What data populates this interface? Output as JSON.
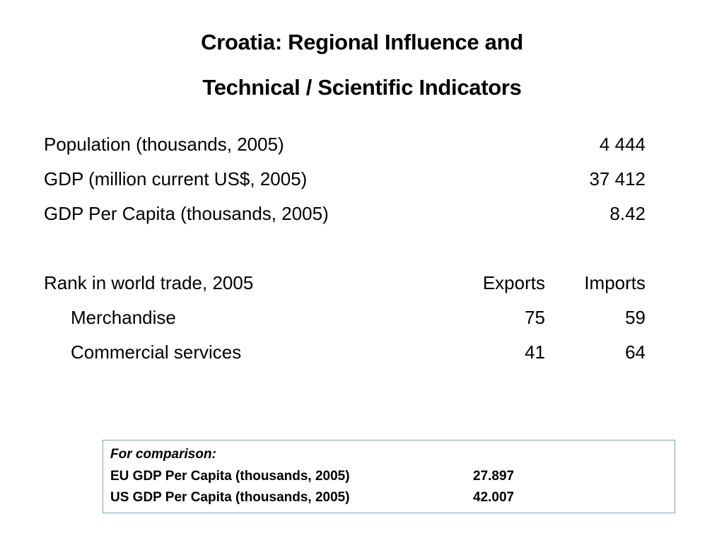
{
  "title": {
    "line1": "Croatia: Regional Influence and",
    "line2": "Technical / Scientific Indicators"
  },
  "indicators": [
    {
      "label": "Population (thousands, 2005)",
      "value": "4 444"
    },
    {
      "label": "GDP (million current US$, 2005)",
      "value": "37 412"
    },
    {
      "label": "GDP Per Capita (thousands, 2005)",
      "value": "8.42"
    }
  ],
  "trade": {
    "heading": "Rank in world trade, 2005",
    "col_exports": "Exports",
    "col_imports": "Imports",
    "rows": [
      {
        "label": "Merchandise",
        "exports": "75",
        "imports": "59"
      },
      {
        "label": "Commercial services",
        "exports": "41",
        "imports": "64"
      }
    ]
  },
  "comparison": {
    "heading": "For comparison:",
    "rows": [
      {
        "label": "EU GDP Per Capita (thousands, 2005)",
        "value": "27.897"
      },
      {
        "label": "US GDP Per Capita (thousands, 2005)",
        "value": "42.007"
      }
    ]
  },
  "colors": {
    "box_border": "#7f9cbf",
    "text": "#000000",
    "background": "#ffffff"
  }
}
